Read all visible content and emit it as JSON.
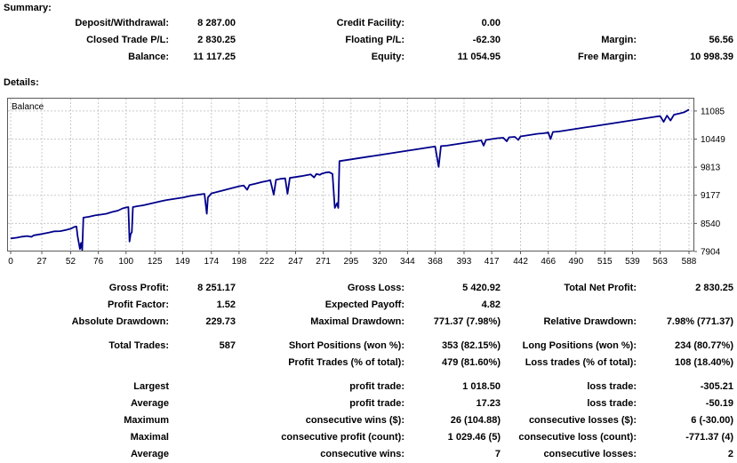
{
  "headings": {
    "summary": "Summary:",
    "details": "Details:"
  },
  "summary": {
    "rows": [
      [
        "Deposit/Withdrawal:",
        "8 287.00",
        "Credit Facility:",
        "0.00",
        "",
        ""
      ],
      [
        "Closed Trade P/L:",
        "2 830.25",
        "Floating P/L:",
        "-62.30",
        "Margin:",
        "56.56"
      ],
      [
        "Balance:",
        "11 117.25",
        "Equity:",
        "11 054.95",
        "Free Margin:",
        "10 998.39"
      ]
    ]
  },
  "chart": {
    "series_label": "Balance",
    "line_color": "#00008B",
    "grid_color": "#c9c9c9",
    "border_color": "#5a5a5a",
    "background": "#ffffff"
  },
  "chart_data": {
    "type": "line",
    "title": "Balance",
    "xlabel": "",
    "ylabel": "",
    "legend_position": "none",
    "grid": true,
    "x_ticks": [
      0,
      27,
      52,
      76,
      100,
      125,
      149,
      174,
      198,
      222,
      247,
      271,
      295,
      320,
      344,
      368,
      393,
      417,
      442,
      466,
      490,
      515,
      539,
      563,
      588
    ],
    "y_ticks": [
      11085,
      10449,
      9813,
      9177,
      8540,
      7904
    ],
    "xlim": [
      0,
      592
    ],
    "ylim": [
      7904,
      11385
    ],
    "x": [
      0,
      5,
      10,
      14,
      18,
      20,
      27,
      33,
      38,
      43,
      48,
      52,
      55,
      57,
      58,
      60,
      61,
      62,
      63,
      68,
      73,
      78,
      83,
      88,
      93,
      97,
      100,
      102,
      103,
      104,
      105,
      106,
      110,
      115,
      120,
      125,
      130,
      135,
      140,
      145,
      150,
      155,
      160,
      165,
      168,
      170,
      171,
      174,
      180,
      186,
      192,
      198,
      202,
      205,
      207,
      212,
      218,
      222,
      225,
      228,
      230,
      234,
      238,
      240,
      242,
      247,
      252,
      256,
      260,
      263,
      265,
      268,
      270,
      273,
      276,
      279,
      281,
      283,
      284,
      285,
      290,
      295,
      300,
      305,
      310,
      315,
      320,
      325,
      330,
      335,
      340,
      345,
      350,
      355,
      360,
      365,
      368,
      371,
      373,
      378,
      383,
      388,
      393,
      398,
      403,
      408,
      410,
      412,
      417,
      422,
      427,
      430,
      432,
      437,
      440,
      442,
      447,
      452,
      457,
      462,
      466,
      468,
      470,
      475,
      480,
      485,
      490,
      495,
      500,
      505,
      510,
      515,
      520,
      525,
      530,
      535,
      540,
      545,
      550,
      555,
      560,
      563,
      566,
      569,
      572,
      575,
      580,
      584,
      588
    ],
    "values": [
      8200,
      8215,
      8240,
      8255,
      8235,
      8270,
      8300,
      8330,
      8360,
      8365,
      8390,
      8420,
      8460,
      8470,
      8250,
      7960,
      8100,
      7940,
      8670,
      8690,
      8720,
      8740,
      8760,
      8800,
      8830,
      8880,
      8900,
      8910,
      8130,
      8300,
      8340,
      8910,
      8930,
      8950,
      8980,
      9010,
      9040,
      9070,
      9090,
      9110,
      9130,
      9160,
      9180,
      9200,
      9210,
      8760,
      9130,
      9220,
      9260,
      9300,
      9340,
      9380,
      9400,
      9300,
      9410,
      9440,
      9480,
      9500,
      9520,
      9190,
      9530,
      9550,
      9560,
      9210,
      9570,
      9590,
      9610,
      9630,
      9650,
      9580,
      9660,
      9640,
      9670,
      9690,
      9700,
      9660,
      8890,
      9000,
      8890,
      9950,
      9970,
      9990,
      10010,
      10030,
      10050,
      10070,
      10090,
      10110,
      10130,
      10150,
      10170,
      10190,
      10210,
      10230,
      10250,
      10270,
      10280,
      9820,
      10290,
      10300,
      10320,
      10340,
      10360,
      10380,
      10400,
      10420,
      10300,
      10430,
      10450,
      10470,
      10480,
      10400,
      10490,
      10500,
      10430,
      10510,
      10530,
      10550,
      10570,
      10580,
      10600,
      10450,
      10610,
      10620,
      10640,
      10660,
      10680,
      10700,
      10720,
      10740,
      10760,
      10780,
      10800,
      10820,
      10840,
      10860,
      10880,
      10900,
      10920,
      10940,
      10960,
      10970,
      10840,
      10980,
      10870,
      11000,
      11030,
      11060,
      11117
    ]
  },
  "stats": {
    "rows": [
      [
        "Gross Profit:",
        "8 251.17",
        "Gross Loss:",
        "5 420.92",
        "Total Net Profit:",
        "2 830.25"
      ],
      [
        "Profit Factor:",
        "1.52",
        "Expected Payoff:",
        "4.82",
        "",
        ""
      ],
      [
        "Absolute Drawdown:",
        "229.73",
        "Maximal Drawdown:",
        "771.37 (7.98%)",
        "Relative Drawdown:",
        "7.98% (771.37)"
      ],
      [
        "Total Trades:",
        "587",
        "Short Positions (won %):",
        "353 (82.15%)",
        "Long Positions (won %):",
        "234 (80.77%)"
      ],
      [
        "",
        "",
        "Profit Trades (% of total):",
        "479 (81.60%)",
        "Loss trades (% of total):",
        "108 (18.40%)"
      ],
      [
        "Largest",
        "",
        "profit trade:",
        "1 018.50",
        "loss trade:",
        "-305.21"
      ],
      [
        "Average",
        "",
        "profit trade:",
        "17.23",
        "loss trade:",
        "-50.19"
      ],
      [
        "Maximum",
        "",
        "consecutive wins ($):",
        "26 (104.88)",
        "consecutive losses ($):",
        "6 (-30.00)"
      ],
      [
        "Maximal",
        "",
        "consecutive profit (count):",
        "1 029.46 (5)",
        "consecutive loss (count):",
        "-771.37 (4)"
      ],
      [
        "Average",
        "",
        "consecutive wins:",
        "7",
        "consecutive losses:",
        "2"
      ]
    ],
    "gap_before_rows": [
      3,
      5
    ]
  }
}
